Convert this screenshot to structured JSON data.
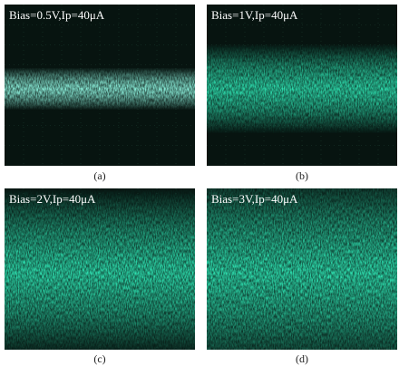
{
  "panels": [
    {
      "label": "Bias=0.5V,Ip=40μA",
      "caption": "(a)"
    },
    {
      "label": "Bias=1V,Ip=40μA",
      "caption": "(b)"
    },
    {
      "label": "Bias=2V,Ip=40μA",
      "caption": "(c)"
    },
    {
      "label": "Bias=3V,Ip=40μA",
      "caption": "(d)"
    }
  ]
}
